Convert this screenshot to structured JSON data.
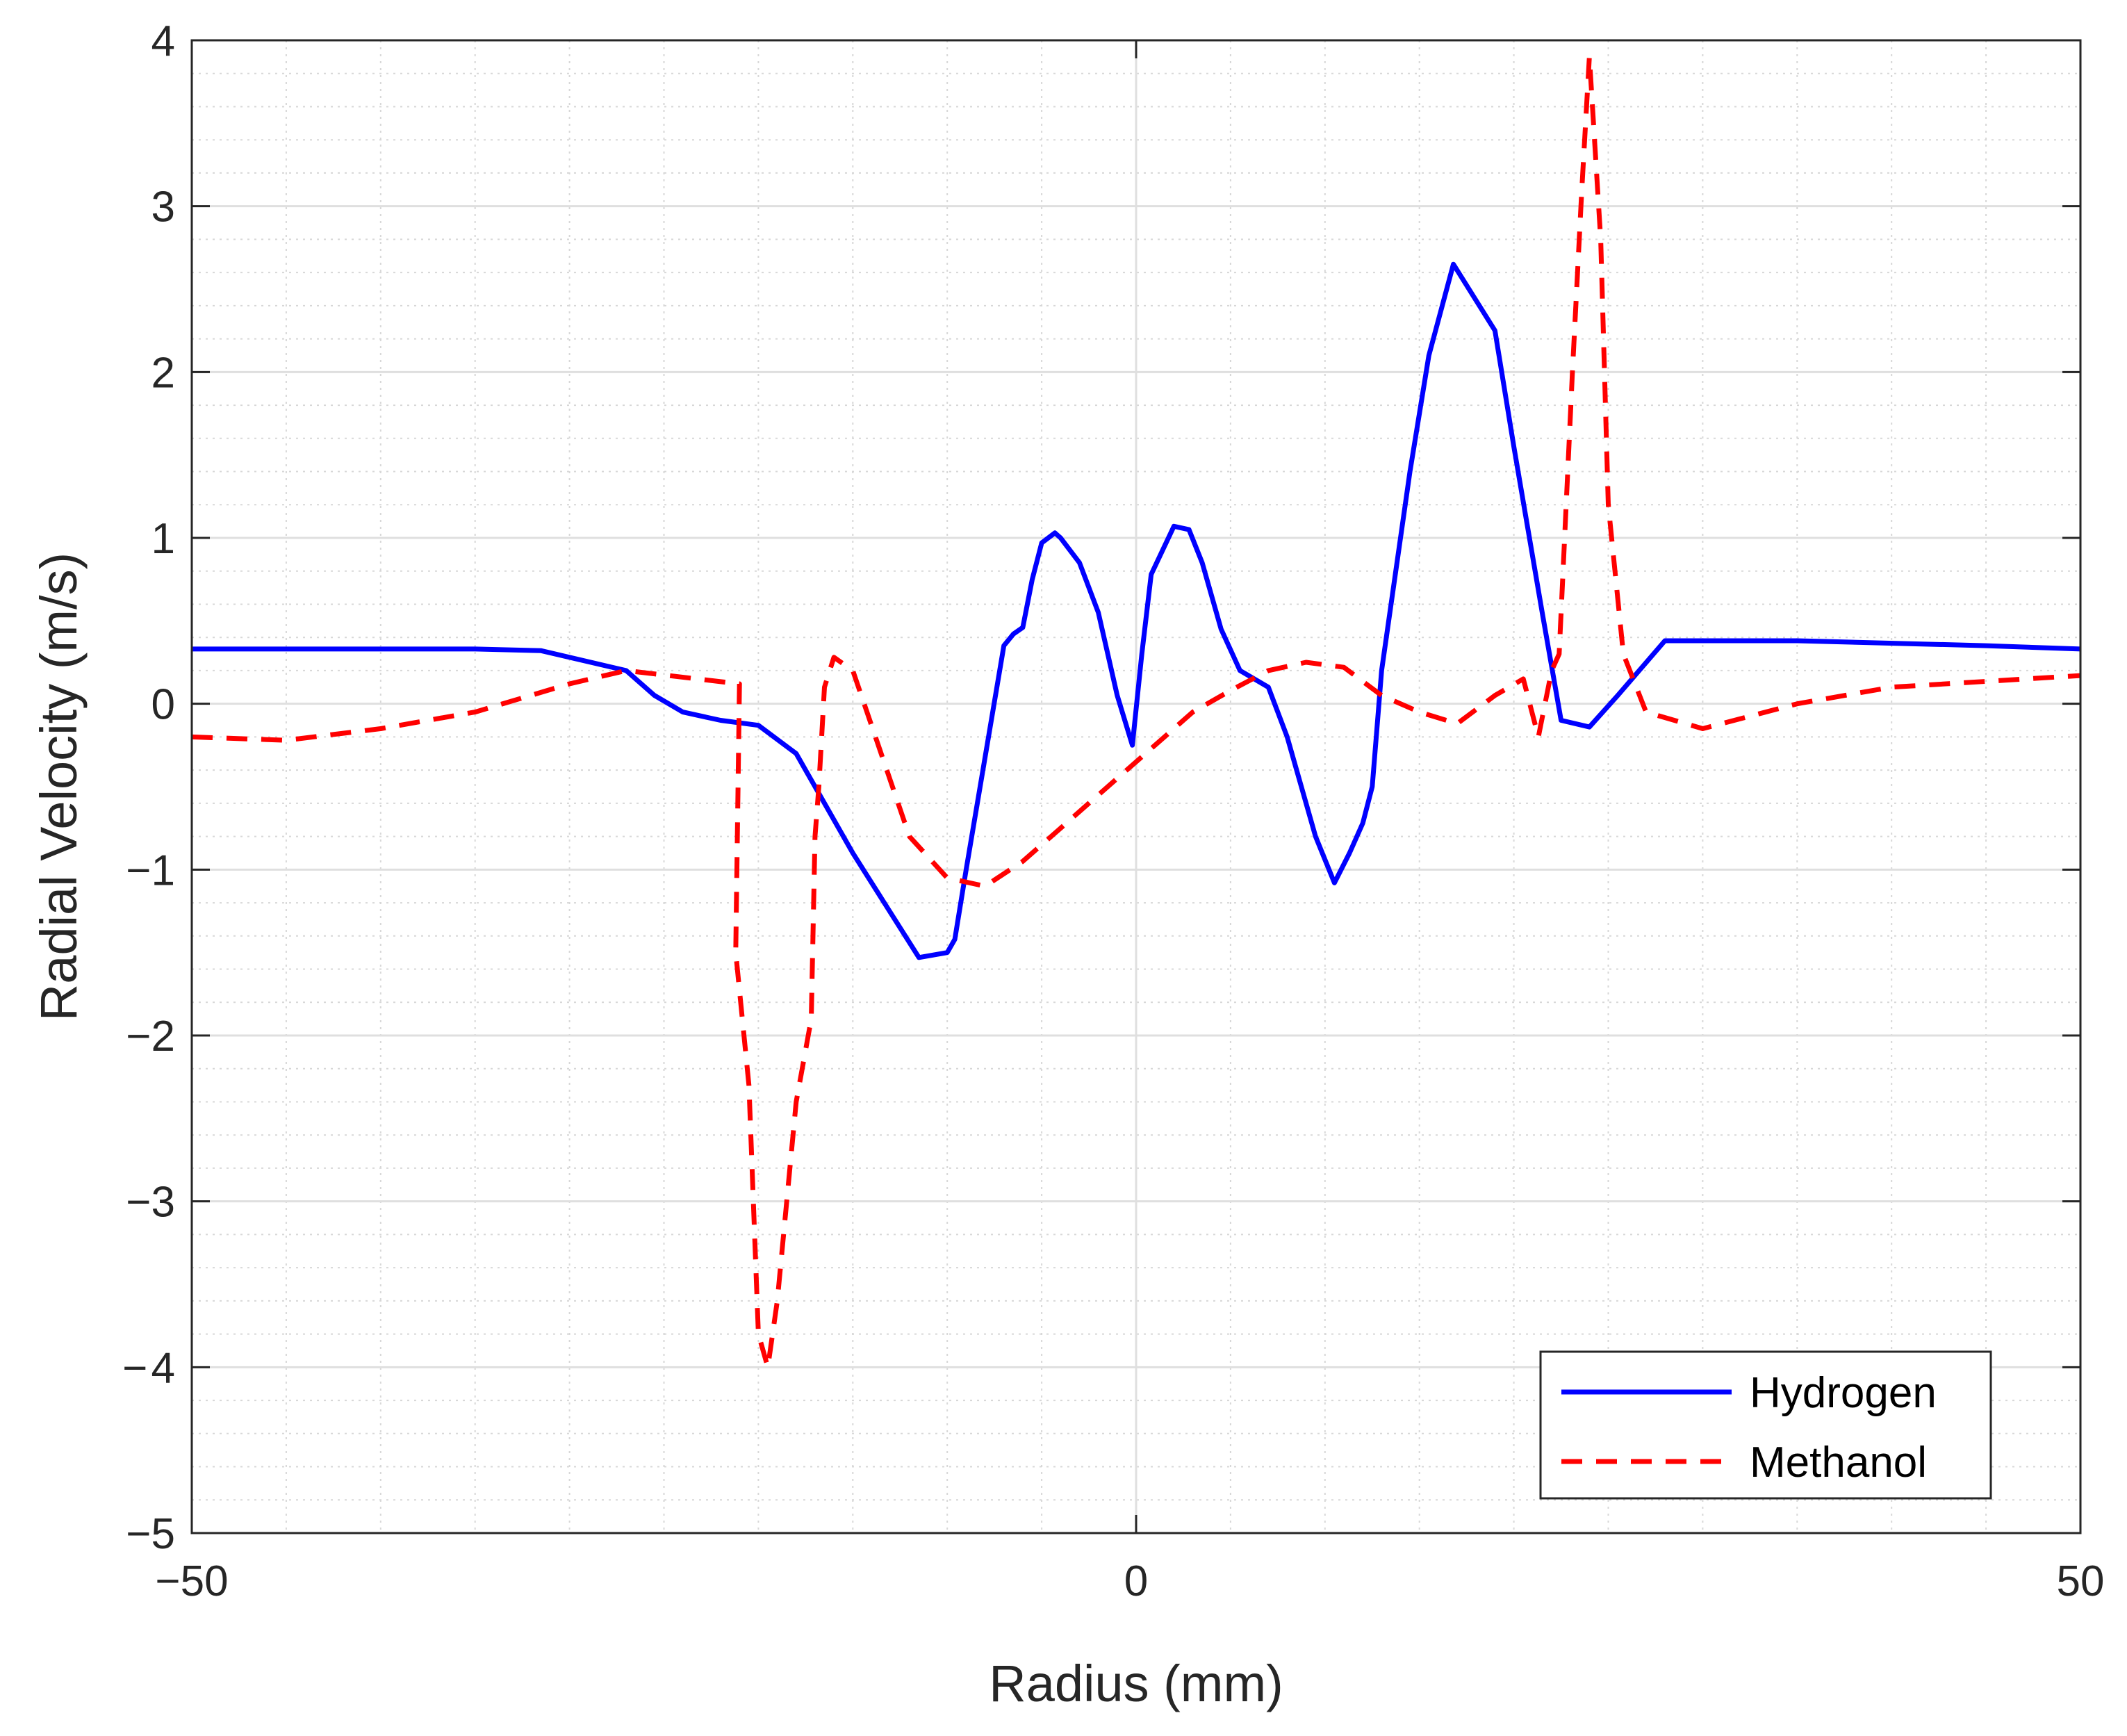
{
  "chart_data": {
    "type": "line",
    "title": "",
    "xlabel": "Radius (mm)",
    "ylabel": "Radial Velocity (m/s)",
    "xlim": [
      -50,
      50
    ],
    "ylim": [
      -5,
      4
    ],
    "grid": true,
    "minor_grid": true,
    "legend_position": "bottom-right",
    "x_ticks": [
      -50,
      0,
      50
    ],
    "x_tick_labels": [
      "−50",
      "0",
      "50"
    ],
    "y_ticks": [
      4,
      3,
      2,
      1,
      0,
      -1,
      -2,
      -3,
      -4,
      -5
    ],
    "y_tick_labels": [
      "4",
      "3",
      "2",
      "1",
      "0",
      "−1",
      "−2",
      "−3",
      "− 4",
      "−5"
    ],
    "series": [
      {
        "name": "Hydrogen",
        "color": "#0000ff",
        "style": "solid",
        "x": [
          -50,
          -40,
          -35,
          -31.5,
          -27,
          -25.5,
          -24,
          -22,
          -20,
          -18,
          -15,
          -11.5,
          -10,
          -9.6,
          -9,
          -7,
          -6.5,
          -6,
          -5.5,
          -5,
          -4.3,
          -4,
          -3,
          -2,
          -1,
          -0.2,
          0.3,
          0.8,
          2,
          2.8,
          3.5,
          4.5,
          5.5,
          7,
          8,
          9.5,
          10.5,
          11.3,
          12,
          12.5,
          13,
          14.5,
          15.5,
          16.8,
          19,
          20,
          21.5,
          22.5,
          24,
          25.5,
          28,
          35,
          45,
          50
        ],
        "y": [
          0.33,
          0.33,
          0.33,
          0.32,
          0.2,
          0.05,
          -0.05,
          -0.1,
          -0.13,
          -0.3,
          -0.9,
          -1.53,
          -1.5,
          -1.42,
          -1.0,
          0.35,
          0.42,
          0.46,
          0.75,
          0.97,
          1.03,
          1.0,
          0.85,
          0.55,
          0.05,
          -0.25,
          0.3,
          0.78,
          1.07,
          1.05,
          0.85,
          0.45,
          0.2,
          0.1,
          -0.2,
          -0.8,
          -1.08,
          -0.9,
          -0.72,
          -0.5,
          0.2,
          1.4,
          2.1,
          2.65,
          2.25,
          1.55,
          0.55,
          -0.1,
          -0.14,
          0.05,
          0.38,
          0.38,
          0.35,
          0.33
        ]
      },
      {
        "name": "Methanol",
        "color": "#ff0000",
        "style": "dashed",
        "x": [
          -50,
          -45,
          -40,
          -35,
          -30,
          -27,
          -25.5,
          -21,
          -21.2,
          -20.5,
          -20,
          -19.5,
          -19,
          -18,
          -17.2,
          -17,
          -16.8,
          -16.5,
          -16,
          -15,
          -12,
          -10,
          -8,
          -6,
          -4,
          -2,
          0,
          3,
          5,
          7,
          9,
          11,
          13,
          15,
          17,
          19,
          20.5,
          21.3,
          22,
          22.4,
          23.1,
          23.6,
          24,
          24.6,
          25,
          25.8,
          27,
          30,
          35,
          40,
          50
        ],
        "y": [
          -0.2,
          -0.22,
          -0.15,
          -0.05,
          0.12,
          0.2,
          0.18,
          0.12,
          -1.5,
          -2.3,
          -3.8,
          -4.0,
          -3.6,
          -2.4,
          -1.9,
          -0.8,
          -0.5,
          0.1,
          0.28,
          0.2,
          -0.8,
          -1.05,
          -1.1,
          -0.95,
          -0.75,
          -0.55,
          -0.35,
          -0.05,
          0.08,
          0.2,
          0.25,
          0.22,
          0.05,
          -0.05,
          -0.12,
          0.05,
          0.15,
          -0.2,
          0.2,
          0.3,
          2.0,
          3.1,
          3.9,
          2.8,
          1.2,
          0.3,
          -0.05,
          -0.15,
          0.0,
          0.1,
          0.17
        ]
      }
    ]
  }
}
